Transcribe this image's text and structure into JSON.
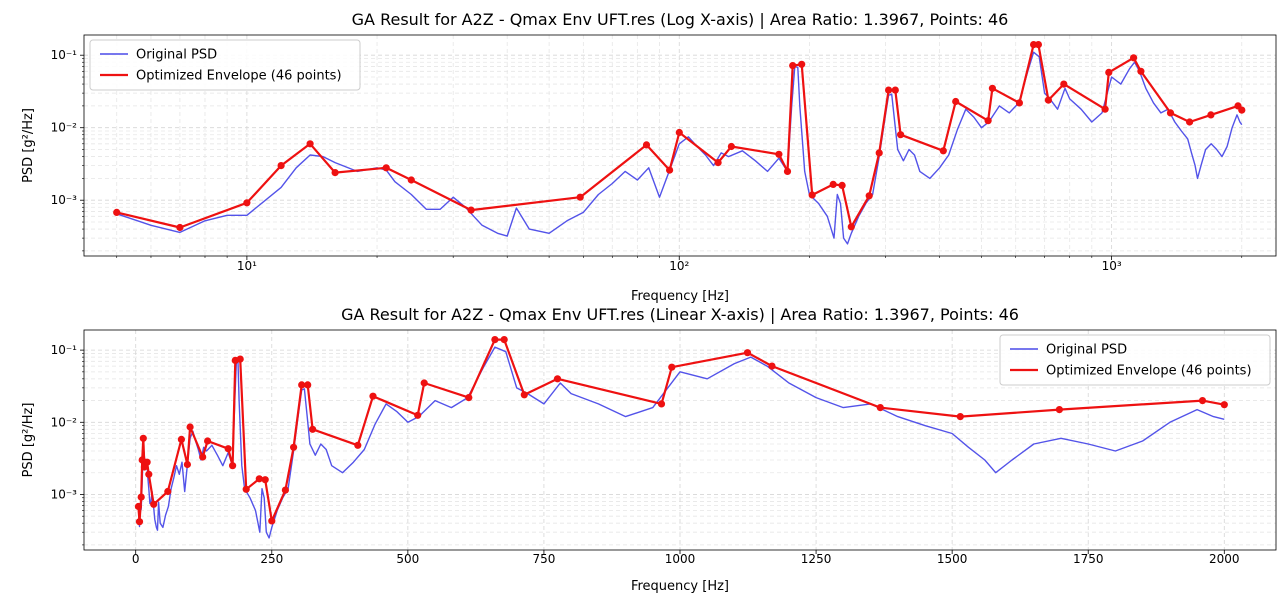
{
  "chart_data": [
    {
      "type": "line",
      "title": "GA Result for A2Z - Qmax Env UFT.res (Log X-axis) | Area Ratio: 1.3967, Points: 46",
      "xlabel": "Frequency [Hz]",
      "ylabel": "PSD [g²/Hz]",
      "xscale": "log",
      "yscale": "log",
      "xlim": [
        4.2,
        2400
      ],
      "ylim": [
        0.00017,
        0.19
      ],
      "xticks": [
        10,
        100,
        1000
      ],
      "xtick_labels": [
        "10¹",
        "10²",
        "10³"
      ],
      "yticks": [
        0.001,
        0.01,
        0.1
      ],
      "ytick_labels": [
        "10⁻³",
        "10⁻²",
        "10⁻¹"
      ],
      "grid": true,
      "legend_position": "top-left"
    },
    {
      "type": "line",
      "title": "GA Result for A2Z - Qmax Env UFT.res (Linear X-axis) | Area Ratio: 1.3967, Points: 46",
      "xlabel": "Frequency [Hz]",
      "ylabel": "PSD [g²/Hz]",
      "xscale": "linear",
      "yscale": "log",
      "xlim": [
        -95,
        2095
      ],
      "ylim": [
        0.00017,
        0.19
      ],
      "xticks": [
        0,
        250,
        500,
        750,
        1000,
        1250,
        1500,
        1750,
        2000
      ],
      "xtick_labels": [
        "0",
        "250",
        "500",
        "750",
        "1000",
        "1250",
        "1500",
        "1750",
        "2000"
      ],
      "yticks": [
        0.001,
        0.01,
        0.1
      ],
      "ytick_labels": [
        "10⁻³",
        "10⁻²",
        "10⁻¹"
      ],
      "grid": true,
      "legend_position": "top-right"
    }
  ],
  "series": [
    {
      "name": "Original PSD",
      "color": "#4a4ae8",
      "points": [
        [
          5,
          0.00065
        ],
        [
          6,
          0.00045
        ],
        [
          7,
          0.00036
        ],
        [
          8,
          0.00052
        ],
        [
          9,
          0.00062
        ],
        [
          10,
          0.00062
        ],
        [
          12,
          0.0015
        ],
        [
          13,
          0.0028
        ],
        [
          14,
          0.0042
        ],
        [
          15,
          0.004
        ],
        [
          16,
          0.0033
        ],
        [
          18,
          0.0025
        ],
        [
          20,
          0.0028
        ],
        [
          21,
          0.0026
        ],
        [
          22,
          0.0018
        ],
        [
          24,
          0.0012
        ],
        [
          26,
          0.00075
        ],
        [
          28,
          0.00075
        ],
        [
          30,
          0.0011
        ],
        [
          32,
          0.0008
        ],
        [
          35,
          0.00045
        ],
        [
          38,
          0.00035
        ],
        [
          40,
          0.00032
        ],
        [
          42,
          0.00078
        ],
        [
          45,
          0.0004
        ],
        [
          50,
          0.00035
        ],
        [
          55,
          0.00052
        ],
        [
          60,
          0.00068
        ],
        [
          65,
          0.0012
        ],
        [
          70,
          0.0017
        ],
        [
          75,
          0.0025
        ],
        [
          80,
          0.0019
        ],
        [
          85,
          0.0028
        ],
        [
          90,
          0.0011
        ],
        [
          95,
          0.0026
        ],
        [
          100,
          0.006
        ],
        [
          105,
          0.0075
        ],
        [
          110,
          0.0055
        ],
        [
          115,
          0.0042
        ],
        [
          120,
          0.003
        ],
        [
          125,
          0.0045
        ],
        [
          130,
          0.004
        ],
        [
          140,
          0.0048
        ],
        [
          150,
          0.0035
        ],
        [
          160,
          0.0025
        ],
        [
          170,
          0.0038
        ],
        [
          178,
          0.0025
        ],
        [
          182,
          0.02
        ],
        [
          185,
          0.07
        ],
        [
          188,
          0.068
        ],
        [
          190,
          0.02
        ],
        [
          195,
          0.0025
        ],
        [
          200,
          0.0012
        ],
        [
          210,
          0.0009
        ],
        [
          220,
          0.0006
        ],
        [
          228,
          0.0003
        ],
        [
          232,
          0.0012
        ],
        [
          236,
          0.0009
        ],
        [
          240,
          0.0003
        ],
        [
          245,
          0.00025
        ],
        [
          250,
          0.00035
        ],
        [
          260,
          0.0006
        ],
        [
          270,
          0.0009
        ],
        [
          280,
          0.0012
        ],
        [
          290,
          0.004
        ],
        [
          300,
          0.015
        ],
        [
          305,
          0.028
        ],
        [
          310,
          0.029
        ],
        [
          315,
          0.012
        ],
        [
          320,
          0.005
        ],
        [
          330,
          0.0035
        ],
        [
          340,
          0.005
        ],
        [
          350,
          0.0042
        ],
        [
          360,
          0.0025
        ],
        [
          380,
          0.002
        ],
        [
          400,
          0.0028
        ],
        [
          420,
          0.0042
        ],
        [
          440,
          0.0095
        ],
        [
          460,
          0.018
        ],
        [
          480,
          0.014
        ],
        [
          500,
          0.01
        ],
        [
          520,
          0.012
        ],
        [
          550,
          0.02
        ],
        [
          580,
          0.016
        ],
        [
          610,
          0.022
        ],
        [
          640,
          0.06
        ],
        [
          660,
          0.11
        ],
        [
          680,
          0.095
        ],
        [
          700,
          0.03
        ],
        [
          720,
          0.025
        ],
        [
          750,
          0.018
        ],
        [
          780,
          0.035
        ],
        [
          800,
          0.025
        ],
        [
          850,
          0.018
        ],
        [
          900,
          0.012
        ],
        [
          950,
          0.016
        ],
        [
          1000,
          0.05
        ],
        [
          1050,
          0.04
        ],
        [
          1100,
          0.065
        ],
        [
          1130,
          0.08
        ],
        [
          1160,
          0.06
        ],
        [
          1200,
          0.035
        ],
        [
          1250,
          0.022
        ],
        [
          1300,
          0.016
        ],
        [
          1350,
          0.018
        ],
        [
          1400,
          0.012
        ],
        [
          1450,
          0.009
        ],
        [
          1500,
          0.007
        ],
        [
          1530,
          0.0045
        ],
        [
          1560,
          0.003
        ],
        [
          1580,
          0.002
        ],
        [
          1610,
          0.003
        ],
        [
          1650,
          0.005
        ],
        [
          1700,
          0.006
        ],
        [
          1750,
          0.005
        ],
        [
          1800,
          0.004
        ],
        [
          1850,
          0.0055
        ],
        [
          1900,
          0.01
        ],
        [
          1950,
          0.015
        ],
        [
          1980,
          0.012
        ],
        [
          2000,
          0.011
        ]
      ]
    },
    {
      "name": "Optimized Envelope (46 points)",
      "color": "#ee1111",
      "points": [
        [
          5,
          0.00068
        ],
        [
          7,
          0.00042
        ],
        [
          10,
          0.00092
        ],
        [
          12,
          0.003
        ],
        [
          14,
          0.006
        ],
        [
          16,
          0.0024
        ],
        [
          21,
          0.0028
        ],
        [
          24,
          0.0019
        ],
        [
          33,
          0.00073
        ],
        [
          59,
          0.0011
        ],
        [
          84,
          0.0058
        ],
        [
          95,
          0.0026
        ],
        [
          100,
          0.0086
        ],
        [
          123,
          0.0033
        ],
        [
          132,
          0.0055
        ],
        [
          170,
          0.0043
        ],
        [
          178,
          0.0025
        ],
        [
          183,
          0.072
        ],
        [
          192,
          0.075
        ],
        [
          203,
          0.00118
        ],
        [
          227,
          0.00165
        ],
        [
          238,
          0.0016
        ],
        [
          250,
          0.00043
        ],
        [
          275,
          0.00115
        ],
        [
          290,
          0.0045
        ],
        [
          305,
          0.033
        ],
        [
          316,
          0.033
        ],
        [
          325,
          0.008
        ],
        [
          408,
          0.0048
        ],
        [
          436,
          0.023
        ],
        [
          518,
          0.0125
        ],
        [
          530,
          0.035
        ],
        [
          612,
          0.022
        ],
        [
          660,
          0.14
        ],
        [
          677,
          0.14
        ],
        [
          714,
          0.024
        ],
        [
          775,
          0.04
        ],
        [
          966,
          0.018
        ],
        [
          985,
          0.058
        ],
        [
          1124,
          0.092
        ],
        [
          1169,
          0.06
        ],
        [
          1368,
          0.016
        ],
        [
          1515,
          0.012
        ],
        [
          1697,
          0.015
        ],
        [
          1960,
          0.02
        ],
        [
          2000,
          0.0175
        ]
      ]
    }
  ]
}
